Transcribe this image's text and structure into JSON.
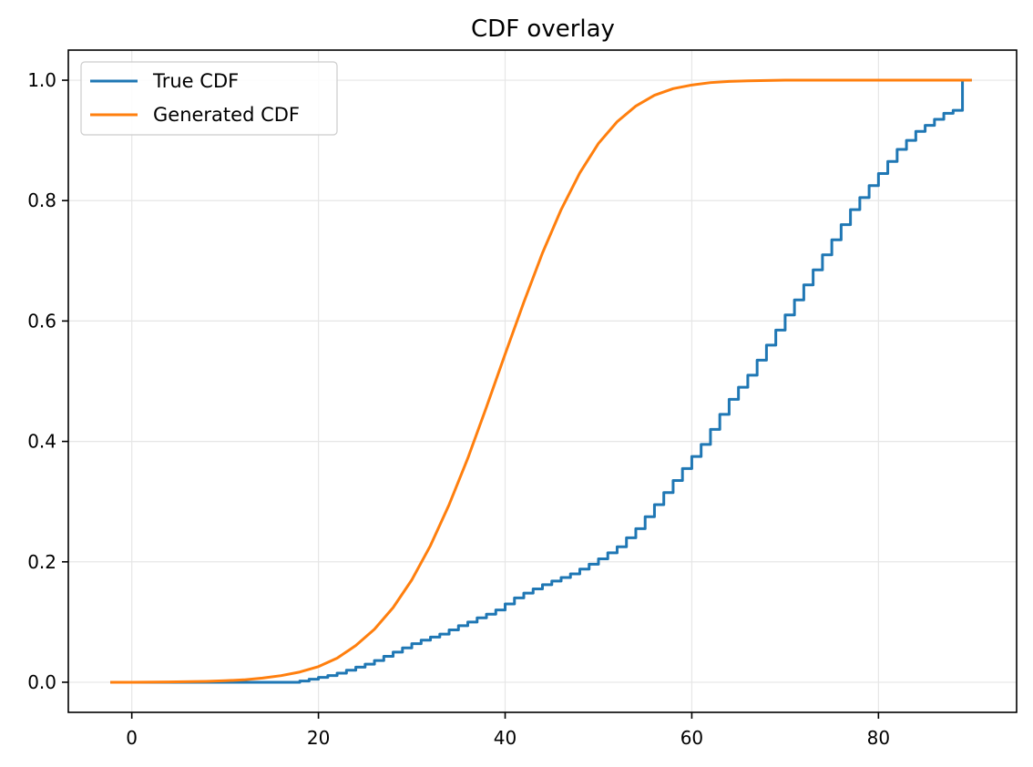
{
  "chart_data": {
    "type": "line",
    "title": "CDF overlay",
    "xlabel": "",
    "ylabel": "",
    "xlim": [
      -6.8,
      94.8
    ],
    "ylim": [
      -0.05,
      1.05
    ],
    "xticks": [
      0,
      20,
      40,
      60,
      80
    ],
    "xtick_labels": [
      "0",
      "20",
      "40",
      "60",
      "80"
    ],
    "yticks": [
      0.0,
      0.2,
      0.4,
      0.6,
      0.8,
      1.0
    ],
    "ytick_labels": [
      "0.0",
      "0.2",
      "0.4",
      "0.6",
      "0.8",
      "1.0"
    ],
    "grid": true,
    "legend_position": "top-left",
    "series": [
      {
        "name": "True CDF",
        "color": "#1f77b4",
        "step": true,
        "x": [
          -2.3,
          17.5,
          18.0,
          19.0,
          20.0,
          21.0,
          22.0,
          23.0,
          24.0,
          25.0,
          26.0,
          27.0,
          28.0,
          29.0,
          30.0,
          31.0,
          32.0,
          33.0,
          34.0,
          35.0,
          36.0,
          37.0,
          38.0,
          39.0,
          40.0,
          41.0,
          42.0,
          43.0,
          44.0,
          45.0,
          46.0,
          47.0,
          48.0,
          49.0,
          50.0,
          51.0,
          52.0,
          53.0,
          54.0,
          55.0,
          56.0,
          57.0,
          58.0,
          59.0,
          60.0,
          61.0,
          62.0,
          63.0,
          64.0,
          65.0,
          66.0,
          67.0,
          68.0,
          69.0,
          70.0,
          71.0,
          72.0,
          73.0,
          74.0,
          75.0,
          76.0,
          77.0,
          78.0,
          79.0,
          80.0,
          81.0,
          82.0,
          83.0,
          84.0,
          85.0,
          86.0,
          87.0,
          88.0,
          89.0,
          90.0
        ],
        "y": [
          0.0,
          0.0,
          0.002,
          0.005,
          0.008,
          0.011,
          0.015,
          0.02,
          0.025,
          0.03,
          0.036,
          0.043,
          0.05,
          0.057,
          0.064,
          0.07,
          0.075,
          0.08,
          0.087,
          0.094,
          0.1,
          0.107,
          0.113,
          0.12,
          0.13,
          0.14,
          0.148,
          0.155,
          0.162,
          0.168,
          0.174,
          0.18,
          0.188,
          0.196,
          0.205,
          0.215,
          0.225,
          0.24,
          0.255,
          0.275,
          0.295,
          0.315,
          0.335,
          0.355,
          0.375,
          0.395,
          0.42,
          0.445,
          0.47,
          0.49,
          0.51,
          0.535,
          0.56,
          0.585,
          0.61,
          0.635,
          0.66,
          0.685,
          0.71,
          0.735,
          0.76,
          0.785,
          0.805,
          0.825,
          0.845,
          0.865,
          0.885,
          0.9,
          0.915,
          0.925,
          0.935,
          0.945,
          0.95,
          1.0,
          1.0
        ]
      },
      {
        "name": "Generated CDF",
        "color": "#ff7f0e",
        "step": false,
        "x": [
          -2.3,
          0,
          4,
          8,
          10,
          12,
          14,
          16,
          18,
          20,
          22,
          24,
          26,
          28,
          30,
          32,
          34,
          36,
          38,
          40,
          42,
          44,
          46,
          48,
          50,
          52,
          54,
          56,
          58,
          60,
          62,
          64,
          66,
          70,
          75,
          80,
          85,
          90
        ],
        "y": [
          0.0,
          0.0,
          0.0005,
          0.0015,
          0.0025,
          0.004,
          0.007,
          0.011,
          0.017,
          0.026,
          0.04,
          0.061,
          0.088,
          0.124,
          0.17,
          0.227,
          0.295,
          0.372,
          0.457,
          0.545,
          0.631,
          0.713,
          0.785,
          0.846,
          0.895,
          0.931,
          0.957,
          0.975,
          0.986,
          0.992,
          0.996,
          0.998,
          0.999,
          1.0,
          1.0,
          1.0,
          1.0,
          1.0
        ]
      }
    ]
  }
}
